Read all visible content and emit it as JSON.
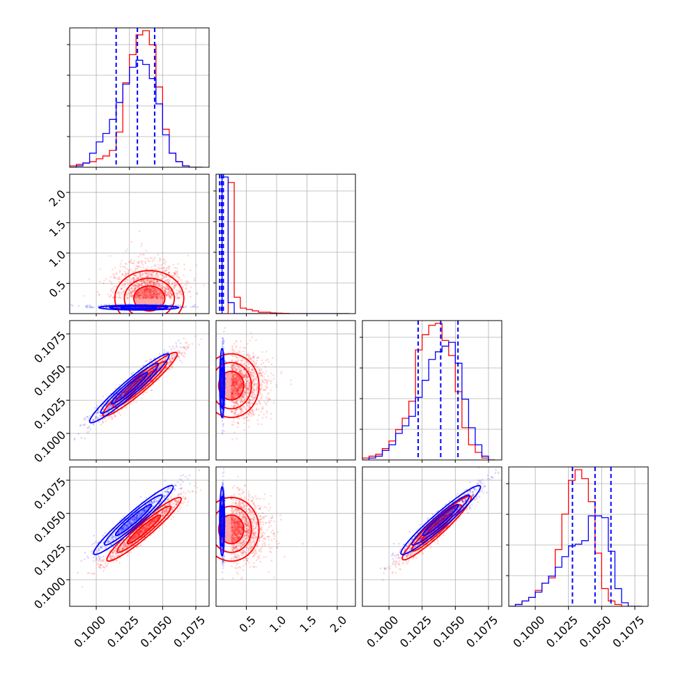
{
  "chart_data": {
    "type": "corner",
    "colors": {
      "series_a": "#0000ff",
      "series_b": "#ff0000",
      "grid": "#b0b0b0"
    },
    "parameters": [
      {
        "range": [
          0.098,
          0.1085
        ],
        "ticks": [
          0.1,
          0.1025,
          0.105,
          0.1075
        ],
        "tick_labels": [
          "0.1000",
          "0.1025",
          "0.1050",
          "0.1075"
        ]
      },
      {
        "range": [
          0.0,
          2.3
        ],
        "ticks": [
          0.5,
          1.0,
          1.5,
          2.0
        ],
        "tick_labels": [
          "0.5",
          "1.0",
          "1.5",
          "2.0"
        ]
      },
      {
        "range": [
          0.098,
          0.1085
        ],
        "ticks": [
          0.1,
          0.1025,
          0.105,
          0.1075
        ],
        "tick_labels": [
          "0.1000",
          "0.1025",
          "0.1050",
          "0.1075"
        ]
      },
      {
        "range": [
          0.098,
          0.1085
        ],
        "ticks": [
          0.1,
          0.1025,
          0.105,
          0.1075
        ],
        "tick_labels": [
          "0.1000",
          "0.1025",
          "0.1050",
          "0.1075"
        ]
      }
    ],
    "diagonal": [
      {
        "bin_edges": [
          0.098,
          0.0985,
          0.099,
          0.0995,
          0.1,
          0.1005,
          0.101,
          0.1015,
          0.102,
          0.1025,
          0.103,
          0.1035,
          0.104,
          0.1045,
          0.105,
          0.1055,
          0.106,
          0.1065,
          0.107,
          0.1075,
          0.108
        ],
        "blue_counts": [
          0,
          1,
          3,
          10,
          18,
          24,
          34,
          46,
          59,
          71,
          76,
          73,
          63,
          45,
          23,
          10,
          4,
          1,
          0,
          0
        ],
        "red_counts": [
          1,
          2,
          3,
          4,
          6,
          8,
          12,
          25,
          60,
          80,
          94,
          97,
          87,
          57,
          27,
          10,
          4,
          1,
          0,
          0
        ],
        "blue_quantiles": [
          0.1015,
          0.1031,
          0.1044
        ]
      },
      {
        "bin_edges": [
          0.0,
          0.1,
          0.2,
          0.3,
          0.4,
          0.5,
          0.6,
          0.7,
          0.8,
          0.9,
          1.0,
          1.1,
          1.2,
          1.3,
          1.4,
          1.5,
          1.6,
          1.7,
          1.8,
          1.9,
          2.0,
          2.1,
          2.2
        ],
        "blue_counts": [
          0,
          100,
          8,
          0,
          0,
          0,
          0,
          0,
          0,
          0,
          0,
          0,
          0,
          0,
          0,
          0,
          0,
          0,
          0,
          0,
          0,
          0
        ],
        "red_counts": [
          0,
          0,
          96,
          12,
          4,
          3,
          2,
          1,
          1,
          0.5,
          0.3,
          0.2,
          0,
          0,
          0,
          0,
          0,
          0,
          0,
          0,
          0,
          0
        ],
        "blue_quantiles": [
          0.06,
          0.09,
          0.12
        ]
      },
      {
        "bin_edges": [
          0.098,
          0.0985,
          0.099,
          0.0995,
          0.1,
          0.1005,
          0.101,
          0.1015,
          0.102,
          0.1025,
          0.103,
          0.1035,
          0.104,
          0.1045,
          0.105,
          0.1055,
          0.106,
          0.1065,
          0.107,
          0.1075,
          0.108
        ],
        "blue_counts": [
          0,
          1,
          2,
          5,
          8,
          14,
          18,
          23,
          33,
          42,
          53,
          57,
          60,
          62,
          51,
          32,
          17,
          8,
          2,
          0
        ],
        "red_counts": [
          1,
          2,
          3,
          6,
          10,
          16,
          22,
          31,
          58,
          66,
          71,
          72,
          63,
          55,
          36,
          17,
          8,
          4,
          1,
          0
        ],
        "blue_quantiles": [
          0.1022,
          0.1039,
          0.1052
        ]
      },
      {
        "bin_edges": [
          0.098,
          0.0985,
          0.099,
          0.0995,
          0.1,
          0.1005,
          0.101,
          0.1015,
          0.102,
          0.1025,
          0.103,
          0.1035,
          0.104,
          0.1045,
          0.105,
          0.1055,
          0.106,
          0.1065,
          0.107,
          0.1075,
          0.108
        ],
        "blue_counts": [
          0,
          1,
          3,
          5,
          8,
          13,
          17,
          22,
          28,
          34,
          35,
          37,
          51,
          51,
          50,
          31,
          10,
          2,
          0,
          0
        ],
        "red_counts": [
          0,
          1,
          3,
          5,
          9,
          13,
          16,
          32,
          52,
          71,
          77,
          72,
          59,
          30,
          10,
          3,
          1,
          0,
          0,
          0
        ],
        "blue_quantiles": [
          0.1028,
          0.1045,
          0.1057
        ]
      }
    ],
    "pairs": [
      {
        "row": 1,
        "col": 0,
        "blue_center": [
          0.1032,
          0.1
        ],
        "red_center": [
          0.104,
          0.25
        ],
        "blue_sd": [
          0.0015,
          0.02
        ],
        "red_sd": [
          0.0013,
          0.23
        ],
        "blue_rho": 0,
        "red_rho": 0
      },
      {
        "row": 2,
        "col": 0,
        "blue_center": [
          0.1025,
          0.1034
        ],
        "red_center": [
          0.1033,
          0.1037
        ],
        "blue_sd": [
          0.0015,
          0.0013
        ],
        "red_sd": [
          0.0014,
          0.0012
        ],
        "blue_rho": 0.96,
        "red_rho": 0.95
      },
      {
        "row": 2,
        "col": 1,
        "blue_center": [
          0.1,
          0.1038
        ],
        "red_center": [
          0.25,
          0.1036
        ],
        "blue_sd": [
          0.02,
          0.0013
        ],
        "red_sd": [
          0.23,
          0.0012
        ],
        "blue_rho": 0,
        "red_rho": 0
      },
      {
        "row": 3,
        "col": 0,
        "blue_center": [
          0.1028,
          0.1045
        ],
        "red_center": [
          0.1036,
          0.1038
        ],
        "blue_sd": [
          0.0015,
          0.0013
        ],
        "red_sd": [
          0.0014,
          0.0012
        ],
        "blue_rho": 0.96,
        "red_rho": 0.95
      },
      {
        "row": 3,
        "col": 1,
        "blue_center": [
          0.1,
          0.1044
        ],
        "red_center": [
          0.25,
          0.1038
        ],
        "blue_sd": [
          0.02,
          0.0013
        ],
        "red_sd": [
          0.23,
          0.0012
        ],
        "blue_rho": 0,
        "red_rho": 0
      },
      {
        "row": 3,
        "col": 2,
        "blue_center": [
          0.1039,
          0.1045
        ],
        "red_center": [
          0.1036,
          0.1039
        ],
        "blue_sd": [
          0.0015,
          0.0013
        ],
        "red_sd": [
          0.0013,
          0.0012
        ],
        "blue_rho": 0.96,
        "red_rho": 0.95
      }
    ]
  }
}
